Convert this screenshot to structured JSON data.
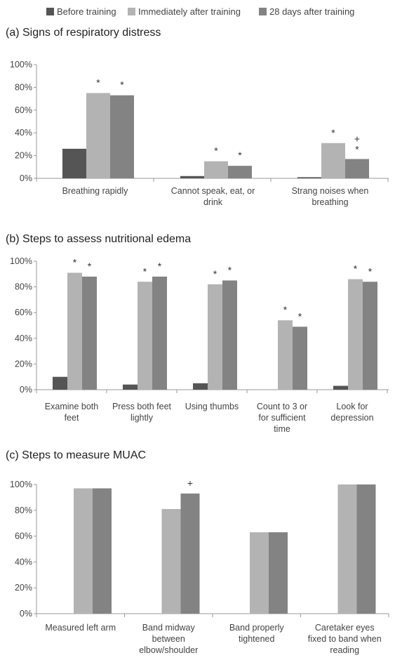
{
  "legend": [
    {
      "label": "Before training",
      "color": "#555555"
    },
    {
      "label": "Immediately after training",
      "color": "#b3b3b3"
    },
    {
      "label": "28 days after training",
      "color": "#838383"
    }
  ],
  "chart_data": [
    {
      "type": "bar",
      "title": "(a) Signs of respiratory distress",
      "categories": [
        [
          "Breathing rapidly"
        ],
        [
          "Cannot speak, eat, or",
          "drink"
        ],
        [
          "Strang noises when",
          "breathing"
        ]
      ],
      "series": [
        {
          "name": "Before training",
          "values": [
            26,
            2,
            1
          ]
        },
        {
          "name": "Immediately after training",
          "values": [
            75,
            15,
            31
          ]
        },
        {
          "name": "28 days after training",
          "values": [
            73,
            11,
            17
          ]
        }
      ],
      "annotations": [
        {
          "category": 0,
          "series": 1,
          "text": "*"
        },
        {
          "category": 0,
          "series": 2,
          "text": "*"
        },
        {
          "category": 1,
          "series": 1,
          "text": "*"
        },
        {
          "category": 1,
          "series": 2,
          "text": "*"
        },
        {
          "category": 2,
          "series": 1,
          "text": "*"
        },
        {
          "category": 2,
          "series": 2,
          "text": "+*"
        }
      ],
      "yticks": [
        "0%",
        "20%",
        "40%",
        "60%",
        "80%",
        "100%"
      ],
      "ylim": [
        0,
        100
      ]
    },
    {
      "type": "bar",
      "title": "(b) Steps to assess nutritional edema",
      "categories": [
        [
          "Examine both",
          "feet"
        ],
        [
          "Press both feet",
          "lightly"
        ],
        [
          "Using thumbs"
        ],
        [
          "Count to 3 or",
          "for sufficient",
          "time"
        ],
        [
          "Look for",
          "depression"
        ]
      ],
      "series": [
        {
          "name": "Before training",
          "values": [
            10,
            4,
            5,
            0,
            3
          ]
        },
        {
          "name": "Immediately after training",
          "values": [
            91,
            84,
            82,
            54,
            86
          ]
        },
        {
          "name": "28 days after training",
          "values": [
            88,
            88,
            85,
            49,
            84
          ]
        }
      ],
      "annotations": [
        {
          "category": 0,
          "series": 1,
          "text": "*"
        },
        {
          "category": 0,
          "series": 2,
          "text": "*"
        },
        {
          "category": 1,
          "series": 1,
          "text": "*"
        },
        {
          "category": 1,
          "series": 2,
          "text": "*"
        },
        {
          "category": 2,
          "series": 1,
          "text": "*"
        },
        {
          "category": 2,
          "series": 2,
          "text": "*"
        },
        {
          "category": 3,
          "series": 1,
          "text": "*"
        },
        {
          "category": 3,
          "series": 2,
          "text": "*"
        },
        {
          "category": 4,
          "series": 1,
          "text": "*"
        },
        {
          "category": 4,
          "series": 2,
          "text": "*"
        }
      ],
      "yticks": [
        "0%",
        "20%",
        "40%",
        "60%",
        "80%",
        "100%"
      ],
      "ylim": [
        0,
        100
      ]
    },
    {
      "type": "bar",
      "title": "(c) Steps to measure MUAC",
      "categories": [
        [
          "Measured left arm"
        ],
        [
          "Band midway",
          "between",
          "elbow/shoulder"
        ],
        [
          "Band properly",
          "tightened"
        ],
        [
          "Caretaker eyes",
          "fixed to band when",
          "reading"
        ]
      ],
      "series": [
        {
          "name": "Immediately after training",
          "values": [
            97,
            81,
            63,
            100
          ]
        },
        {
          "name": "28 days after training",
          "values": [
            97,
            93,
            63,
            100
          ]
        }
      ],
      "annotations": [
        {
          "category": 1,
          "series": 1,
          "text": "+"
        }
      ],
      "yticks": [
        "0%",
        "20%",
        "40%",
        "60%",
        "80%",
        "100%"
      ],
      "ylim": [
        0,
        100
      ]
    }
  ]
}
